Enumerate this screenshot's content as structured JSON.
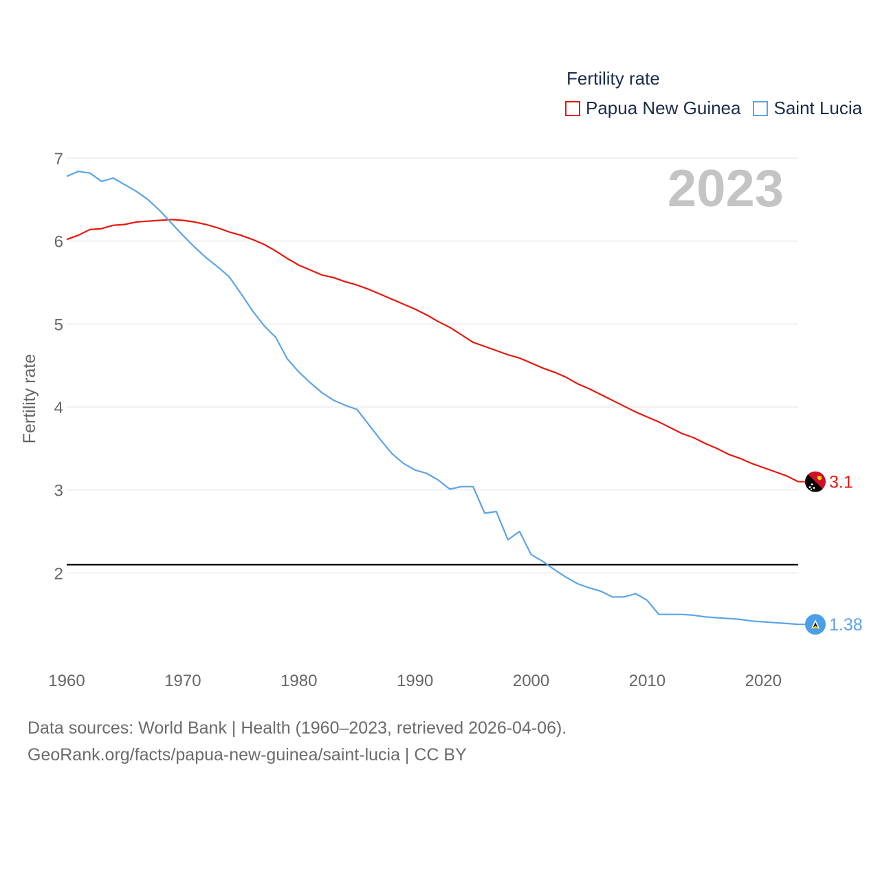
{
  "legend": {
    "title": "Fertility rate",
    "items": [
      {
        "label": "Papua New Guinea",
        "color": "#e8160c"
      },
      {
        "label": "Saint Lucia",
        "color": "#5ba4e6"
      }
    ]
  },
  "source": {
    "line1": "Data sources: World Bank | Health (1960–2023, retrieved 2026-04-06).",
    "line2": "GeoRank.org/facts/papua-new-guinea/saint-lucia | CC BY"
  },
  "chart_data": {
    "type": "line",
    "title": "Fertility rate",
    "year_label": "2023",
    "ylabel": "Fertility rate",
    "xlabel": "",
    "xlim": [
      1960,
      2023
    ],
    "ylim": [
      1,
      7
    ],
    "xticks": [
      1960,
      1970,
      1980,
      1990,
      2000,
      2010,
      2020
    ],
    "yticks": [
      2,
      3,
      4,
      5,
      6,
      7
    ],
    "reference_line": 2.1,
    "reference_color": "#000000",
    "grid": true,
    "legend_position": "top-right",
    "x": [
      1960,
      1961,
      1962,
      1963,
      1964,
      1965,
      1966,
      1967,
      1968,
      1969,
      1970,
      1971,
      1972,
      1973,
      1974,
      1975,
      1976,
      1977,
      1978,
      1979,
      1980,
      1981,
      1982,
      1983,
      1984,
      1985,
      1986,
      1987,
      1988,
      1989,
      1990,
      1991,
      1992,
      1993,
      1994,
      1995,
      1996,
      1997,
      1998,
      1999,
      2000,
      2001,
      2002,
      2003,
      2004,
      2005,
      2006,
      2007,
      2008,
      2009,
      2010,
      2011,
      2012,
      2013,
      2014,
      2015,
      2016,
      2017,
      2018,
      2019,
      2020,
      2021,
      2022,
      2023
    ],
    "series": [
      {
        "name": "Papua New Guinea",
        "color": "#e8160c",
        "end_label": "3.1",
        "values": [
          6.02,
          6.07,
          6.14,
          6.15,
          6.19,
          6.2,
          6.23,
          6.24,
          6.25,
          6.26,
          6.25,
          6.23,
          6.2,
          6.16,
          6.11,
          6.07,
          6.02,
          5.96,
          5.88,
          5.79,
          5.71,
          5.65,
          5.59,
          5.56,
          5.51,
          5.47,
          5.42,
          5.36,
          5.3,
          5.24,
          5.18,
          5.11,
          5.03,
          4.96,
          4.87,
          4.78,
          4.73,
          4.68,
          4.63,
          4.59,
          4.53,
          4.47,
          4.42,
          4.36,
          4.28,
          4.22,
          4.15,
          4.08,
          4.01,
          3.94,
          3.88,
          3.82,
          3.75,
          3.68,
          3.63,
          3.56,
          3.5,
          3.43,
          3.38,
          3.32,
          3.27,
          3.22,
          3.17,
          3.1
        ]
      },
      {
        "name": "Saint Lucia",
        "color": "#5ba4e6",
        "end_label": "1.38",
        "values": [
          6.78,
          6.84,
          6.82,
          6.72,
          6.76,
          6.68,
          6.6,
          6.5,
          6.37,
          6.22,
          6.07,
          5.93,
          5.8,
          5.69,
          5.57,
          5.37,
          5.16,
          4.98,
          4.84,
          4.58,
          4.42,
          4.29,
          4.17,
          4.08,
          4.02,
          3.97,
          3.79,
          3.61,
          3.44,
          3.32,
          3.24,
          3.2,
          3.12,
          3.01,
          3.04,
          3.04,
          2.72,
          2.74,
          2.4,
          2.5,
          2.22,
          2.14,
          2.04,
          1.95,
          1.87,
          1.82,
          1.78,
          1.71,
          1.71,
          1.75,
          1.67,
          1.5,
          1.5,
          1.5,
          1.49,
          1.47,
          1.46,
          1.45,
          1.44,
          1.42,
          1.41,
          1.4,
          1.39,
          1.38
        ]
      }
    ]
  }
}
